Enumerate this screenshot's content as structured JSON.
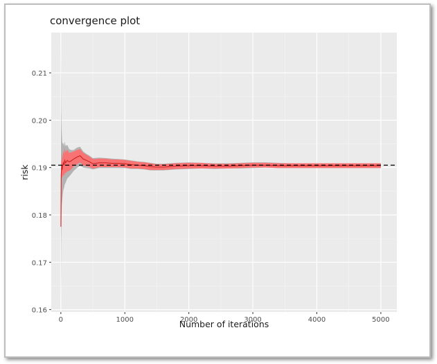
{
  "chart_data": {
    "type": "line",
    "title": "convergence plot",
    "xlabel": "Number of iterations",
    "ylabel": "risk",
    "xlim": [
      -150,
      5250
    ],
    "ylim": [
      0.1595,
      0.2185
    ],
    "x_ticks": [
      0,
      1000,
      2000,
      3000,
      4000,
      5000
    ],
    "x_tick_labels": [
      "0",
      "1000",
      "2000",
      "3000",
      "4000",
      "5000"
    ],
    "y_ticks": [
      0.16,
      0.17,
      0.18,
      0.19,
      0.2,
      0.21
    ],
    "y_tick_labels": [
      "0.16",
      "0.17",
      "0.18",
      "0.19",
      "0.20",
      "0.21"
    ],
    "grid": true,
    "reference_line": {
      "y": 0.1905,
      "style": "dashed",
      "color": "#000000"
    },
    "series": [
      {
        "type": "line",
        "color": "#cc2222",
        "x": [
          1,
          5,
          10,
          15,
          20,
          30,
          40,
          50,
          60,
          75,
          100,
          130,
          160,
          200,
          250,
          300,
          350,
          400,
          450,
          500,
          600,
          700,
          800,
          900,
          1000,
          1100,
          1200,
          1300,
          1400,
          1500,
          1600,
          1700,
          1800,
          2000,
          2200,
          2400,
          2600,
          2800,
          3000,
          3200,
          3400,
          3600,
          3800,
          4000,
          4200,
          4400,
          4600,
          4800,
          5000
        ],
        "y": [
          0.1775,
          0.1885,
          0.1895,
          0.1905,
          0.1895,
          0.1905,
          0.191,
          0.1905,
          0.1915,
          0.191,
          0.1915,
          0.1912,
          0.1914,
          0.1918,
          0.1922,
          0.1925,
          0.1918,
          0.1915,
          0.1912,
          0.1908,
          0.191,
          0.191,
          0.1909,
          0.1909,
          0.1908,
          0.1906,
          0.1905,
          0.1904,
          0.1902,
          0.1901,
          0.1901,
          0.1902,
          0.1903,
          0.1904,
          0.1904,
          0.1903,
          0.1903,
          0.1904,
          0.1905,
          0.1905,
          0.1904,
          0.1904,
          0.1904,
          0.1904,
          0.1904,
          0.1904,
          0.1904,
          0.1904,
          0.1904
        ]
      },
      {
        "type": "ribbon",
        "fill": "#ff6b6b",
        "x": [
          1,
          5,
          10,
          15,
          20,
          30,
          40,
          50,
          60,
          75,
          100,
          130,
          160,
          200,
          250,
          300,
          350,
          400,
          450,
          500,
          600,
          700,
          800,
          900,
          1000,
          1100,
          1200,
          1300,
          1400,
          1500,
          1600,
          1700,
          1800,
          2000,
          2200,
          2400,
          2600,
          2800,
          3000,
          3200,
          3400,
          3600,
          3800,
          4000,
          4200,
          4400,
          4600,
          4800,
          5000
        ],
        "lower": [
          0.1765,
          0.1855,
          0.1875,
          0.188,
          0.1878,
          0.1883,
          0.1885,
          0.1882,
          0.1889,
          0.1888,
          0.1892,
          0.1893,
          0.1896,
          0.1902,
          0.1907,
          0.1911,
          0.1905,
          0.1903,
          0.1901,
          0.1898,
          0.1901,
          0.1901,
          0.1901,
          0.1901,
          0.19,
          0.1898,
          0.1898,
          0.1897,
          0.1895,
          0.1895,
          0.1895,
          0.1896,
          0.1897,
          0.1898,
          0.1898,
          0.1898,
          0.1898,
          0.1899,
          0.19,
          0.19,
          0.1899,
          0.1899,
          0.1899,
          0.1899,
          0.1899,
          0.1899,
          0.1899,
          0.1899,
          0.1899
        ],
        "upper": [
          0.1785,
          0.1915,
          0.1915,
          0.193,
          0.1912,
          0.1927,
          0.1935,
          0.1928,
          0.1941,
          0.1932,
          0.1938,
          0.1931,
          0.1932,
          0.1934,
          0.1937,
          0.1939,
          0.1931,
          0.1927,
          0.1923,
          0.1918,
          0.1919,
          0.1919,
          0.1917,
          0.1917,
          0.1916,
          0.1914,
          0.1912,
          0.1911,
          0.1909,
          0.1907,
          0.1907,
          0.1908,
          0.1909,
          0.191,
          0.191,
          0.1908,
          0.1908,
          0.1909,
          0.191,
          0.191,
          0.1909,
          0.1909,
          0.1909,
          0.1909,
          0.1909,
          0.1909,
          0.1909,
          0.1909,
          0.1909
        ]
      },
      {
        "type": "ribbon",
        "fill": "#a9a9a9",
        "x": [
          1,
          5,
          10,
          15,
          20,
          30,
          40,
          50,
          60,
          75,
          100,
          130,
          160,
          200,
          250,
          300,
          350,
          400,
          450,
          500,
          600,
          700,
          800,
          900,
          1000,
          1100,
          1200,
          1300,
          1400,
          1500,
          1600,
          1700,
          1800,
          2000,
          2200,
          2400,
          2600,
          2800,
          3000,
          3200,
          3400,
          3600,
          3800,
          4000,
          4200,
          4400,
          4600,
          4800,
          5000
        ],
        "lower": [
          0.162,
          0.1735,
          0.1795,
          0.182,
          0.1828,
          0.1843,
          0.1853,
          0.1857,
          0.1864,
          0.1868,
          0.1877,
          0.1881,
          0.1886,
          0.1893,
          0.1899,
          0.1904,
          0.19,
          0.1899,
          0.1898,
          0.1896,
          0.1899,
          0.1899,
          0.1899,
          0.1899,
          0.1899,
          0.1897,
          0.1897,
          0.1896,
          0.1894,
          0.1894,
          0.1894,
          0.1895,
          0.1896,
          0.1897,
          0.1898,
          0.1897,
          0.1898,
          0.1898,
          0.1899,
          0.19,
          0.1899,
          0.1899,
          0.1899,
          0.1899,
          0.1899,
          0.1899,
          0.1899,
          0.1899,
          0.1899
        ],
        "upper": [
          0.2155,
          0.2025,
          0.1985,
          0.197,
          0.1955,
          0.195,
          0.1952,
          0.1945,
          0.1955,
          0.1945,
          0.1948,
          0.1939,
          0.1937,
          0.1937,
          0.1942,
          0.1944,
          0.1934,
          0.1929,
          0.1925,
          0.192,
          0.1921,
          0.192,
          0.1919,
          0.1918,
          0.1917,
          0.1915,
          0.1913,
          0.1912,
          0.191,
          0.1908,
          0.1908,
          0.1909,
          0.191,
          0.1911,
          0.191,
          0.1909,
          0.1909,
          0.191,
          0.1911,
          0.1911,
          0.191,
          0.1909,
          0.1909,
          0.1909,
          0.1909,
          0.1909,
          0.1909,
          0.1909,
          0.1909
        ]
      }
    ]
  }
}
